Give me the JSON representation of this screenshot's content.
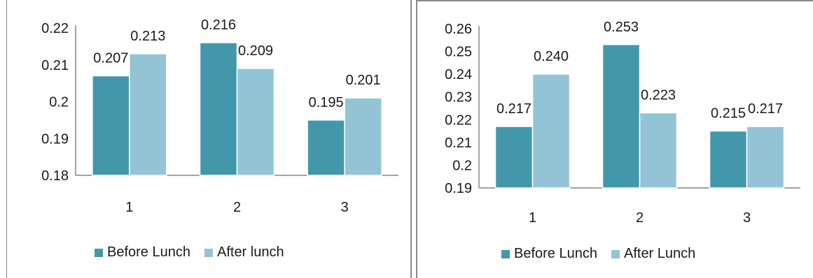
{
  "colors": {
    "before": "#4297ab",
    "after": "#93c4d6",
    "axis": "#868686",
    "text": "#1a1a1a"
  },
  "chart_data": [
    {
      "type": "bar",
      "categories": [
        "1",
        "2",
        "3"
      ],
      "series": [
        {
          "name": "Before Lunch",
          "values": [
            0.207,
            0.216,
            0.195
          ],
          "labels": [
            "0.207",
            "0.216",
            "0.195"
          ]
        },
        {
          "name": "After lunch",
          "values": [
            0.213,
            0.209,
            0.201
          ],
          "labels": [
            "0.213",
            "0.209",
            "0.201"
          ]
        }
      ],
      "ylim": [
        0.18,
        0.22
      ],
      "yticks": [
        "0.18",
        "0.19",
        "0.2",
        "0.21",
        "0.22"
      ],
      "grid": false,
      "legend": "bottom"
    },
    {
      "type": "bar",
      "categories": [
        "1",
        "2",
        "3"
      ],
      "series": [
        {
          "name": "Before Lunch",
          "values": [
            0.217,
            0.253,
            0.215
          ],
          "labels": [
            "0.217",
            "0.253",
            "0.215"
          ]
        },
        {
          "name": "After Lunch",
          "values": [
            0.24,
            0.223,
            0.217
          ],
          "labels": [
            "0.240",
            "0.223",
            "0.217"
          ]
        }
      ],
      "ylim": [
        0.19,
        0.26
      ],
      "yticks": [
        "0.19",
        "0.2",
        "0.21",
        "0.22",
        "0.23",
        "0.24",
        "0.25",
        "0.26"
      ],
      "grid": false,
      "legend": "bottom"
    }
  ]
}
